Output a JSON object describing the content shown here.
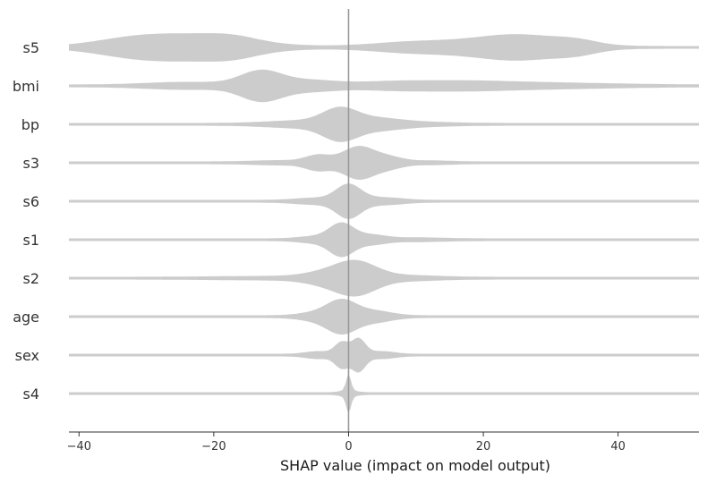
{
  "chart_data": {
    "type": "violin",
    "xlabel": "SHAP value (impact on model output)",
    "xlim": [
      -41.5,
      52
    ],
    "xticks": [
      -40,
      -20,
      0,
      20,
      40
    ],
    "xtick_labels": [
      "−40",
      "−20",
      "0",
      "20",
      "40"
    ],
    "zero_line": 0,
    "grid": false,
    "colors": {
      "violin": "#cccccc",
      "zero_line": "#999999",
      "axis": "#333333"
    },
    "features": [
      {
        "name": "s5",
        "peaks": [
          {
            "x": -24,
            "w": 8.0,
            "h": 13
          },
          {
            "x": -17,
            "w": 3.5,
            "h": 4
          },
          {
            "x": -33,
            "w": 5.0,
            "h": 4
          },
          {
            "x": 10,
            "w": 6.0,
            "h": 5
          },
          {
            "x": 25,
            "w": 6.5,
            "h": 13
          },
          {
            "x": 34,
            "w": 3.0,
            "h": 4
          }
        ]
      },
      {
        "name": "bmi",
        "peaks": [
          {
            "x": -13,
            "w": 3.0,
            "h": 15
          },
          {
            "x": -6,
            "w": 4.0,
            "h": 5
          },
          {
            "x": -24,
            "w": 6.0,
            "h": 3
          },
          {
            "x": 5,
            "w": 5.0,
            "h": 2
          },
          {
            "x": 15,
            "w": 8.0,
            "h": 4
          },
          {
            "x": 30,
            "w": 10.0,
            "h": 2
          }
        ]
      },
      {
        "name": "bp",
        "peaks": [
          {
            "x": -1.3,
            "w": 2.5,
            "h": 15
          },
          {
            "x": 4,
            "w": 3.5,
            "h": 5
          },
          {
            "x": -7,
            "w": 5.0,
            "h": 3
          },
          {
            "x": 10,
            "w": 5.0,
            "h": 1.5
          }
        ]
      },
      {
        "name": "s3",
        "peaks": [
          {
            "x": -4.5,
            "w": 1.8,
            "h": 7
          },
          {
            "x": 1.5,
            "w": 2.3,
            "h": 17
          },
          {
            "x": 6,
            "w": 2.0,
            "h": 5
          },
          {
            "x": -10,
            "w": 4.0,
            "h": 1.5
          },
          {
            "x": 12,
            "w": 3.0,
            "h": 1.2
          }
        ]
      },
      {
        "name": "s6",
        "peaks": [
          {
            "x": 0,
            "w": 1.8,
            "h": 17
          },
          {
            "x": -5,
            "w": 3.0,
            "h": 2.5
          },
          {
            "x": 5,
            "w": 3.0,
            "h": 3
          }
        ]
      },
      {
        "name": "s1",
        "peaks": [
          {
            "x": -1,
            "w": 1.8,
            "h": 17
          },
          {
            "x": 3.5,
            "w": 2.0,
            "h": 4
          },
          {
            "x": -5,
            "w": 2.5,
            "h": 2.5
          },
          {
            "x": 10,
            "w": 4.0,
            "h": 1.2
          }
        ]
      },
      {
        "name": "s2",
        "peaks": [
          {
            "x": 1,
            "w": 3.0,
            "h": 17
          },
          {
            "x": -4,
            "w": 3.0,
            "h": 4
          },
          {
            "x": 8,
            "w": 5.0,
            "h": 2
          },
          {
            "x": -12,
            "w": 8.0,
            "h": 1
          }
        ]
      },
      {
        "name": "age",
        "peaks": [
          {
            "x": -1,
            "w": 2.2,
            "h": 17
          },
          {
            "x": 4,
            "w": 2.5,
            "h": 5
          },
          {
            "x": -5,
            "w": 2.5,
            "h": 3
          }
        ]
      },
      {
        "name": "sex",
        "peaks": [
          {
            "x": -1,
            "w": 1.0,
            "h": 13
          },
          {
            "x": 1.5,
            "w": 1.0,
            "h": 17
          },
          {
            "x": -4.5,
            "w": 1.8,
            "h": 3
          },
          {
            "x": 5,
            "w": 1.8,
            "h": 3
          }
        ]
      },
      {
        "name": "s4",
        "peaks": [
          {
            "x": 0,
            "w": 0.35,
            "h": 17
          },
          {
            "x": 0,
            "w": 1.0,
            "h": 3
          }
        ]
      }
    ]
  }
}
